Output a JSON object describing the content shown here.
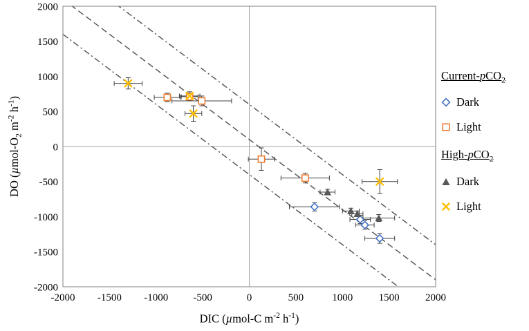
{
  "labels": {
    "x": {
      "pre": "DIC (",
      "mu": "µ",
      "mid1": "mol-C m",
      "sup1": "-2",
      "mid2": " h",
      "sup2": "-1",
      "post": ")"
    },
    "y": {
      "pre": "DO (",
      "mu": "µ",
      "mid1": "mol-O",
      "sub1": "2",
      "mid2": " m",
      "sup1": "-2",
      "mid3": " h",
      "sup2": "-1",
      "post": ")"
    }
  },
  "legend": {
    "position": "right",
    "groups": [
      {
        "heading": {
          "pre": "Current-",
          "p": "p",
          "co": "CO",
          "sub": "2"
        },
        "items": [
          {
            "label": "Dark",
            "marker": "diamond-open",
            "color": "#4472C4"
          },
          {
            "label": "Light",
            "marker": "square-open",
            "color": "#ED7D31"
          }
        ]
      },
      {
        "heading": {
          "pre": "High-",
          "p": "p",
          "co": "CO",
          "sub": "2"
        },
        "items": [
          {
            "label": "Dark",
            "marker": "triangle-filled",
            "color": "#595959"
          },
          {
            "label": "Light",
            "marker": "x-cross",
            "color": "#FFC000"
          }
        ]
      }
    ]
  },
  "colors": {
    "error_bar": "#404040",
    "zero_line": "#A6A6A6",
    "border": "#808080",
    "ref_line": "#595959",
    "blue": "#4472C4",
    "orange": "#ED7D31",
    "gray": "#595959",
    "yellow": "#FFC000"
  },
  "chart_data": {
    "type": "scatter",
    "title": "",
    "xlabel": "DIC (µmol-C m-2 h-1)",
    "ylabel": "DO (µmol-O2 m-2 h-1)",
    "xlim": [
      -2000,
      2000
    ],
    "ylim": [
      -2000,
      2000
    ],
    "x_ticks": [
      -2000,
      -1500,
      -1000,
      -500,
      0,
      500,
      1000,
      1500,
      2000
    ],
    "y_ticks": [
      -2000,
      -1500,
      -1000,
      -500,
      0,
      500,
      1000,
      1500,
      2000
    ],
    "grid": false,
    "zero_lines": true,
    "legend_position": "right",
    "reference_lines": [
      {
        "slope": -1,
        "intercept": 600,
        "style": "dashdot"
      },
      {
        "slope": -1,
        "intercept": 100,
        "style": "dashed"
      },
      {
        "slope": -1,
        "intercept": -400,
        "style": "dashdot"
      }
    ],
    "series": [
      {
        "id": "current-dark",
        "name": "Current-pCO2 Dark",
        "marker": "diamond-open",
        "color": "#4472C4",
        "points": [
          {
            "x": 700,
            "y": -860,
            "xerr": 270,
            "yerr": 60
          },
          {
            "x": 1190,
            "y": -1040,
            "xerr": 110,
            "yerr": 60
          },
          {
            "x": 1240,
            "y": -1120,
            "xerr": 100,
            "yerr": 60
          },
          {
            "x": 1400,
            "y": -1310,
            "xerr": 160,
            "yerr": 70
          }
        ]
      },
      {
        "id": "current-light",
        "name": "Current-pCO2 Light",
        "marker": "square-open",
        "color": "#ED7D31",
        "points": [
          {
            "x": -880,
            "y": 700,
            "xerr": 140,
            "yerr": 60
          },
          {
            "x": -640,
            "y": 710,
            "xerr": 90,
            "yerr": 50
          },
          {
            "x": -510,
            "y": 650,
            "xerr": 320,
            "yerr": 70
          },
          {
            "x": 130,
            "y": -180,
            "xerr": 140,
            "yerr": 160
          },
          {
            "x": 600,
            "y": -450,
            "xerr": 260,
            "yerr": 70
          }
        ]
      },
      {
        "id": "high-dark",
        "name": "High-pCO2 Dark",
        "marker": "triangle-filled",
        "color": "#595959",
        "points": [
          {
            "x": 840,
            "y": -650,
            "xerr": 80,
            "yerr": 40
          },
          {
            "x": 1090,
            "y": -920,
            "xerr": 90,
            "yerr": 40
          },
          {
            "x": 1160,
            "y": -960,
            "xerr": 60,
            "yerr": 40
          },
          {
            "x": 1390,
            "y": -1020,
            "xerr": 170,
            "yerr": 50
          }
        ]
      },
      {
        "id": "high-light",
        "name": "High-pCO2 Light",
        "marker": "x-cross",
        "color": "#FFC000",
        "points": [
          {
            "x": -1300,
            "y": 900,
            "xerr": 150,
            "yerr": 80
          },
          {
            "x": -640,
            "y": 720,
            "xerr": 110,
            "yerr": 60
          },
          {
            "x": -600,
            "y": 470,
            "xerr": 90,
            "yerr": 110
          },
          {
            "x": 1400,
            "y": -500,
            "xerr": 190,
            "yerr": 170
          }
        ]
      }
    ]
  }
}
